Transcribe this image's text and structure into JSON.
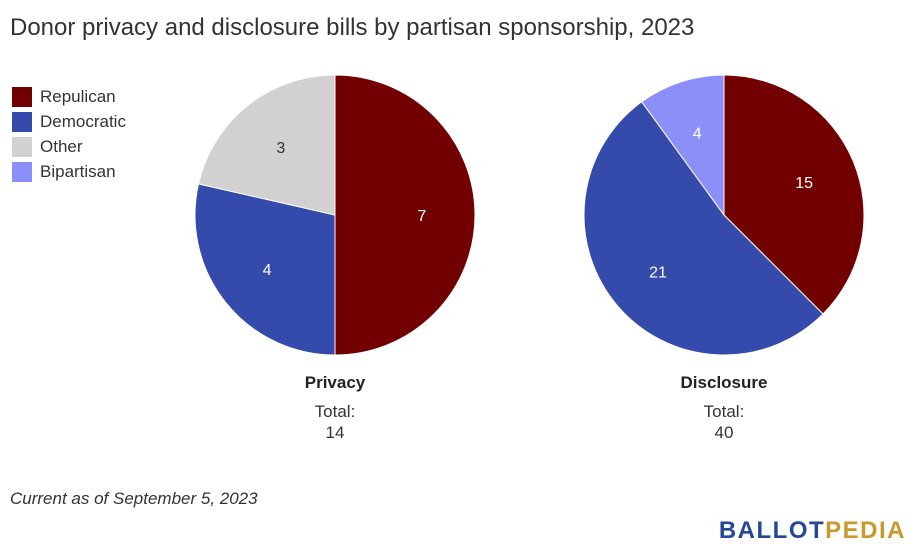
{
  "title": "Donor privacy and disclosure bills by partisan sponsorship, 2023",
  "legend": [
    {
      "label": "Repulican",
      "color": "#720000"
    },
    {
      "label": "Democratic",
      "color": "#344bab"
    },
    {
      "label": "Other",
      "color": "#d1d1d1"
    },
    {
      "label": "Bipartisan",
      "color": "#8b8ff7"
    }
  ],
  "chart_data": [
    {
      "type": "pie",
      "title": "Privacy",
      "total_label": "Total:",
      "total": "14",
      "slices": [
        {
          "label": "Repulican",
          "value": 7,
          "color": "#720000"
        },
        {
          "label": "Democratic",
          "value": 4,
          "color": "#344bab"
        },
        {
          "label": "Other",
          "value": 3,
          "color": "#d1d1d1"
        }
      ]
    },
    {
      "type": "pie",
      "title": "Disclosure",
      "total_label": "Total:",
      "total": "40",
      "slices": [
        {
          "label": "Repulican",
          "value": 15,
          "color": "#720000"
        },
        {
          "label": "Democratic",
          "value": 21,
          "color": "#344bab"
        },
        {
          "label": "Bipartisan",
          "value": 4,
          "color": "#8b8ff7"
        }
      ]
    }
  ],
  "footnote": "Current as of September 5, 2023",
  "logo": {
    "part1": "BALLOT",
    "part2": "PEDIA"
  }
}
